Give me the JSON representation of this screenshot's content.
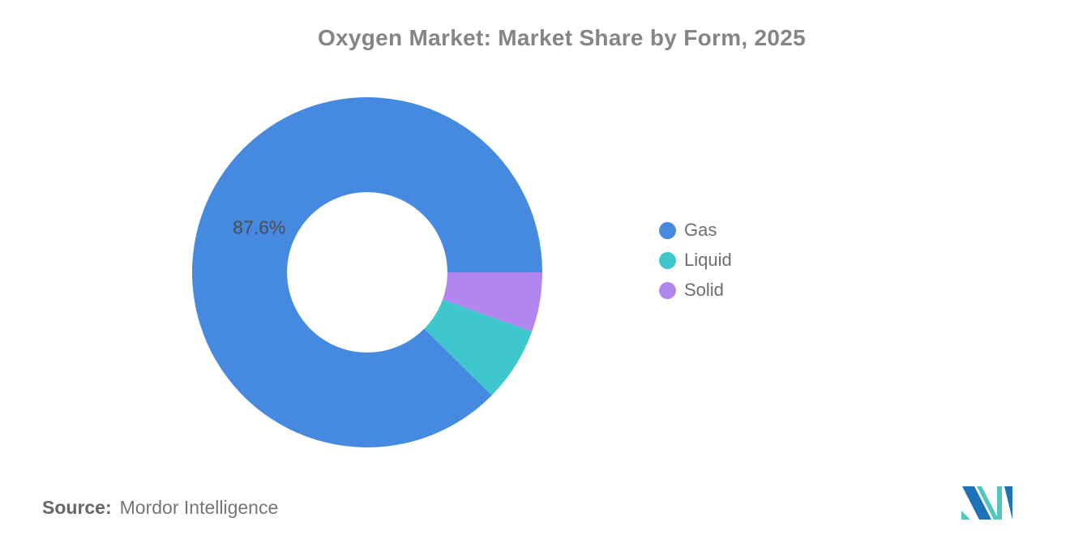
{
  "title": "Oxygen Market: Market Share by Form, 2025",
  "chart_data": {
    "type": "pie",
    "subtype": "donut",
    "title": "Oxygen Market: Market Share by Form, 2025",
    "unit": "%",
    "series": [
      {
        "name": "Gas",
        "value": 87.6,
        "color": "#4589E0",
        "label": "87.6%"
      },
      {
        "name": "Liquid",
        "value": 6.9,
        "color": "#3EC8CD",
        "label": ""
      },
      {
        "name": "Solid",
        "value": 5.5,
        "color": "#B286EF",
        "label": ""
      }
    ],
    "start_angle_deg": 0,
    "direction": "counterclockwise",
    "inner_radius_ratio": 0.458,
    "legend_position": "right",
    "data_label_color": "#4D4D4D",
    "background": "#FFFFFF"
  },
  "source": {
    "prefix": "Source:",
    "text": "Mordor Intelligence"
  },
  "logo": {
    "name": "mordor-intelligence-logo",
    "blue": "#1E73B8",
    "teal": "#52C5BF"
  }
}
